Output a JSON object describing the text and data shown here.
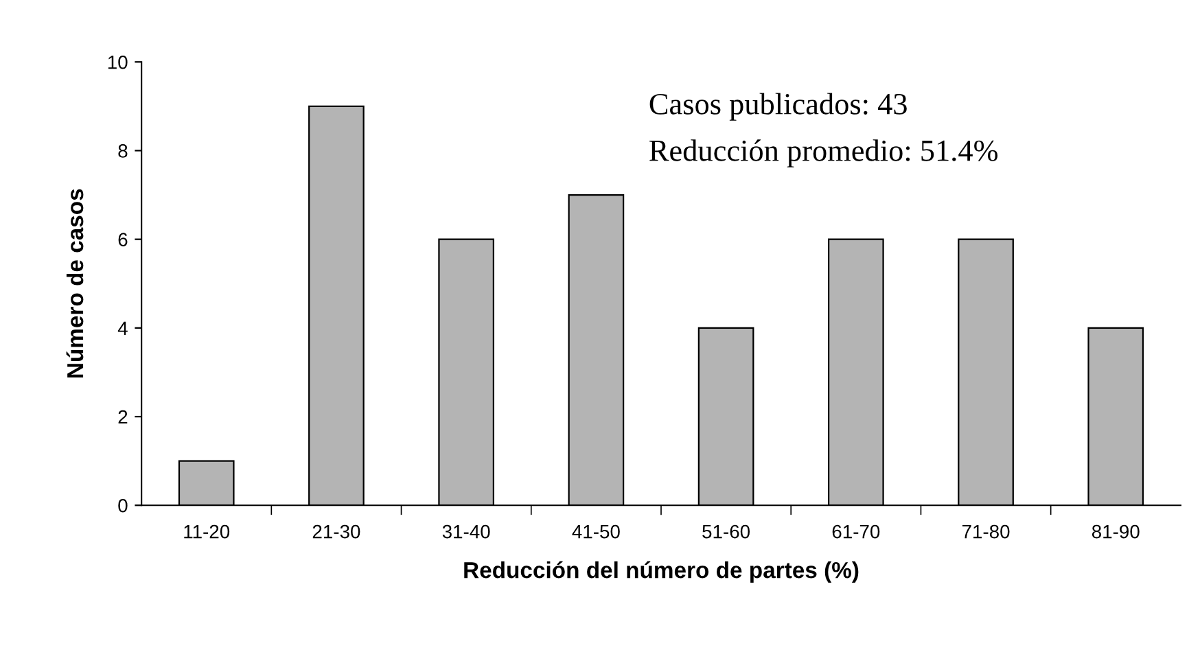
{
  "chart_data": {
    "type": "bar",
    "xlabel": "Reducción del número de partes (%)",
    "ylabel": "Número de casos",
    "categories": [
      "11-20",
      "21-30",
      "31-40",
      "41-50",
      "51-60",
      "61-70",
      "71-80",
      "81-90"
    ],
    "values": [
      1,
      9,
      6,
      7,
      4,
      6,
      6,
      4
    ],
    "color": "#b4b4b4",
    "ylim": [
      0,
      10
    ],
    "yticks": [
      0,
      2,
      4,
      6,
      8,
      10
    ],
    "grid": false,
    "annotations": [
      "Casos publicados: 43",
      "Reducción promedio: 51.4%"
    ]
  }
}
